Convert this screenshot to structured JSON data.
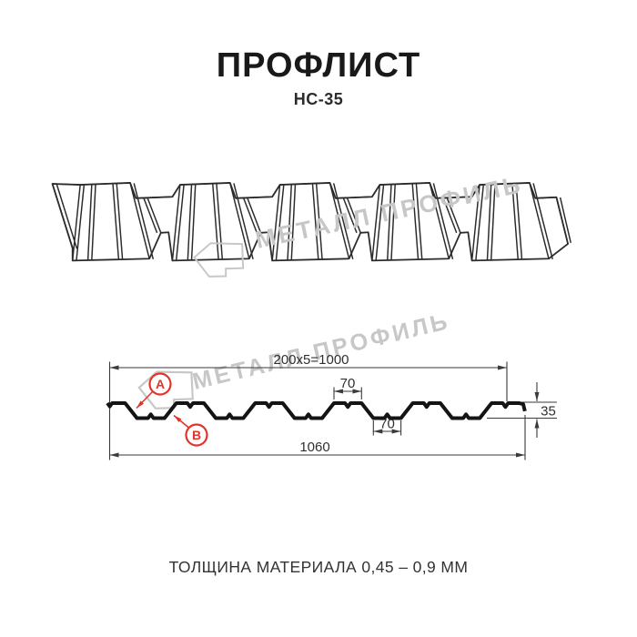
{
  "header": {
    "title": "ПРОФЛИСТ",
    "subtitle": "НС-35"
  },
  "watermark": {
    "text": "МЕТАЛЛ ПРОФИЛЬ",
    "color": "#c7c7c7",
    "logo_icon": "metall-profil-logo"
  },
  "drawing3d": {
    "description": "perspective sketch of corrugated profiled sheet НС-35",
    "line_color": "#2b2b2b"
  },
  "cross_section": {
    "dimensions": {
      "working_width": "200x5=1000",
      "rib_top_width": "70",
      "rib_bottom_width": "70",
      "overall_width": "1060",
      "profile_height": "35"
    },
    "labels": {
      "point_a": "A",
      "point_b": "B"
    },
    "accent_color": "#e0352b",
    "profile_line_color": "#141414",
    "dim_line_color": "#3a3a3a"
  },
  "footer": {
    "note": "ТОЛЩИНА МАТЕРИАЛА 0,45 – 0,9 ММ"
  }
}
